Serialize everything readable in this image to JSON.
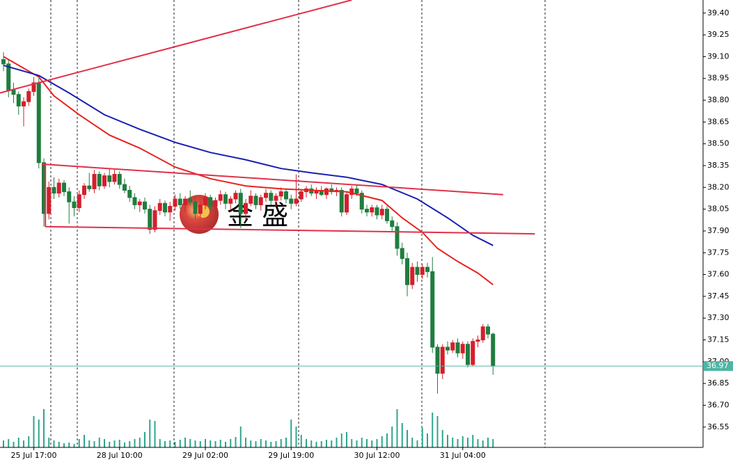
{
  "chart_data": {
    "type": "candlestick",
    "categories": [
      null,
      null,
      null,
      null,
      null,
      null,
      "25 Jul 17:00",
      null,
      null,
      null,
      null,
      null,
      null,
      null,
      null,
      null,
      null,
      null,
      null,
      null,
      null,
      null,
      null,
      "28 Jul 10:00",
      null,
      null,
      null,
      null,
      null,
      null,
      null,
      null,
      null,
      null,
      null,
      null,
      null,
      null,
      null,
      null,
      "29 Jul 02:00",
      null,
      null,
      null,
      null,
      null,
      null,
      null,
      null,
      null,
      null,
      null,
      null,
      null,
      null,
      null,
      null,
      "29 Jul 19:00",
      null,
      null,
      null,
      null,
      null,
      null,
      null,
      null,
      null,
      null,
      null,
      null,
      null,
      null,
      null,
      null,
      "30 Jul 12:00",
      null,
      null,
      null,
      null,
      null,
      null,
      null,
      null,
      null,
      null,
      null,
      null,
      null,
      null,
      null,
      null,
      "31 Jul 04:00",
      null,
      null,
      null,
      null,
      null,
      null
    ],
    "open": [
      39.08,
      39.05,
      38.87,
      38.84,
      38.76,
      38.79,
      38.86,
      38.92,
      38.37,
      38.02,
      38.2,
      38.16,
      38.23,
      38.17,
      38.1,
      38.06,
      38.15,
      38.21,
      38.19,
      38.29,
      38.21,
      38.28,
      38.24,
      38.29,
      38.22,
      38.18,
      38.13,
      38.08,
      38.1,
      38.05,
      37.91,
      38.04,
      38.09,
      38.03,
      38.07,
      38.12,
      38.08,
      38.12,
      38.1,
      38.02,
      38.08,
      38.13,
      38.07,
      38.11,
      38.15,
      38.09,
      38.12,
      38.16,
      38.02,
      38.09,
      38.14,
      38.08,
      38.13,
      38.16,
      38.11,
      38.14,
      38.17,
      38.12,
      38.09,
      38.12,
      38.17,
      38.19,
      38.16,
      38.18,
      38.15,
      38.19,
      38.17,
      38.18,
      38.03,
      38.15,
      38.19,
      38.16,
      38.05,
      38.03,
      38.06,
      38.01,
      38.05,
      37.97,
      37.93,
      37.78,
      37.71,
      37.53,
      37.65,
      37.6,
      37.65,
      37.62,
      37.1,
      36.92,
      37.1,
      37.08,
      37.13,
      37.06,
      37.12,
      36.98,
      37.14,
      37.15,
      37.24,
      37.19
    ],
    "high": [
      39.13,
      39.08,
      38.92,
      38.86,
      38.82,
      38.88,
      38.96,
      38.95,
      38.4,
      38.24,
      38.27,
      38.26,
      38.25,
      38.2,
      38.14,
      38.18,
      38.23,
      38.3,
      38.32,
      38.31,
      38.3,
      38.33,
      38.32,
      38.31,
      38.26,
      38.21,
      38.16,
      38.12,
      38.13,
      38.08,
      38.07,
      38.12,
      38.11,
      38.1,
      38.15,
      38.16,
      38.14,
      38.18,
      38.14,
      38.1,
      38.16,
      38.15,
      38.13,
      38.18,
      38.17,
      38.14,
      38.18,
      38.19,
      38.12,
      38.18,
      38.16,
      38.15,
      38.19,
      38.18,
      38.16,
      38.2,
      38.19,
      38.15,
      38.29,
      38.19,
      38.21,
      38.22,
      38.2,
      38.21,
      38.2,
      38.22,
      38.2,
      38.2,
      38.17,
      38.21,
      38.22,
      38.18,
      38.08,
      38.08,
      38.08,
      38.08,
      38.07,
      38.0,
      37.96,
      37.82,
      37.75,
      37.68,
      37.69,
      37.67,
      37.68,
      37.72,
      37.12,
      37.12,
      37.14,
      37.15,
      37.16,
      37.14,
      37.14,
      37.16,
      37.18,
      37.26,
      37.26,
      37.2
    ],
    "low": [
      39.0,
      38.82,
      38.78,
      38.7,
      38.62,
      38.76,
      38.83,
      38.33,
      37.93,
      37.98,
      38.12,
      38.13,
      38.14,
      37.95,
      38.0,
      38.03,
      38.12,
      38.17,
      38.16,
      38.18,
      38.19,
      38.2,
      38.22,
      38.19,
      38.16,
      38.1,
      38.05,
      38.03,
      38.02,
      37.88,
      37.89,
      38.01,
      38.0,
      37.97,
      38.04,
      38.05,
      38.03,
      38.08,
      37.98,
      37.99,
      38.05,
      38.04,
      38.02,
      38.08,
      38.05,
      38.04,
      38.09,
      37.92,
      37.98,
      38.07,
      38.05,
      38.04,
      38.1,
      38.08,
      38.07,
      38.11,
      38.09,
      38.05,
      38.07,
      38.1,
      38.13,
      38.14,
      38.12,
      38.14,
      38.12,
      38.15,
      38.14,
      38.0,
      38.01,
      38.12,
      38.14,
      38.02,
      38.0,
      38.0,
      37.98,
      37.98,
      37.95,
      37.9,
      37.73,
      37.67,
      37.45,
      37.5,
      37.55,
      37.57,
      37.58,
      37.06,
      36.78,
      36.88,
      37.05,
      37.06,
      37.03,
      37.02,
      36.96,
      36.97,
      37.1,
      37.13,
      37.16,
      36.91
    ],
    "close": [
      39.05,
      38.87,
      38.84,
      38.76,
      38.79,
      38.86,
      38.92,
      38.37,
      38.02,
      38.2,
      38.16,
      38.23,
      38.17,
      38.1,
      38.06,
      38.15,
      38.21,
      38.19,
      38.29,
      38.21,
      38.28,
      38.24,
      38.29,
      38.22,
      38.18,
      38.13,
      38.08,
      38.1,
      38.05,
      37.91,
      38.04,
      38.09,
      38.03,
      38.07,
      38.12,
      38.08,
      38.12,
      38.1,
      38.02,
      38.08,
      38.13,
      38.07,
      38.11,
      38.15,
      38.09,
      38.12,
      38.16,
      38.02,
      38.09,
      38.14,
      38.08,
      38.13,
      38.16,
      38.11,
      38.14,
      38.17,
      38.12,
      38.09,
      38.12,
      38.17,
      38.19,
      38.16,
      38.18,
      38.15,
      38.19,
      38.17,
      38.18,
      38.03,
      38.15,
      38.19,
      38.16,
      38.05,
      38.03,
      38.06,
      38.01,
      38.05,
      37.97,
      37.93,
      37.78,
      37.71,
      37.53,
      37.65,
      37.6,
      37.65,
      37.62,
      37.1,
      36.92,
      37.1,
      37.08,
      37.13,
      37.06,
      37.12,
      36.98,
      37.14,
      37.15,
      37.24,
      37.19,
      36.97
    ],
    "volume": [
      10,
      12,
      8,
      14,
      10,
      16,
      45,
      40,
      55,
      14,
      10,
      8,
      6,
      7,
      5,
      12,
      18,
      10,
      9,
      14,
      12,
      8,
      10,
      11,
      7,
      9,
      12,
      14,
      22,
      40,
      38,
      12,
      9,
      10,
      8,
      11,
      14,
      12,
      10,
      9,
      12,
      10,
      9,
      11,
      8,
      12,
      15,
      30,
      14,
      10,
      9,
      12,
      10,
      8,
      9,
      12,
      14,
      40,
      30,
      18,
      12,
      10,
      8,
      9,
      11,
      10,
      14,
      20,
      22,
      12,
      10,
      14,
      12,
      10,
      12,
      16,
      20,
      30,
      55,
      35,
      25,
      14,
      10,
      28,
      20,
      50,
      45,
      25,
      18,
      14,
      12,
      16,
      14,
      18,
      12,
      10,
      14,
      12
    ],
    "ylim": [
      36.41,
      39.49
    ],
    "yticks": [
      {
        "value": 39.4,
        "label": "39.40"
      },
      39.25,
      {
        "value": 39.1,
        "label": "39.10"
      },
      38.95,
      {
        "value": 38.8,
        "label": "38.80"
      },
      38.65,
      {
        "value": 38.5,
        "label": "38.50"
      },
      38.35,
      {
        "value": 38.2,
        "label": "38.20"
      },
      38.05,
      {
        "value": 37.9,
        "label": "37.90"
      },
      37.75,
      {
        "value": 37.6,
        "label": "37.60"
      },
      37.45,
      {
        "value": 37.3,
        "label": "37.30"
      },
      37.15,
      {
        "value": 37.0,
        "label": "37.00"
      },
      36.85,
      {
        "value": 36.7,
        "label": "36.70"
      },
      36.55
    ],
    "up_color": "#d41f2c",
    "down_color": "#1f7d3f",
    "volume_color": "#2ca58d",
    "moving_averages": [
      {
        "color": "#e8231f",
        "x": [
          0,
          3,
          7,
          10,
          15,
          21,
          27,
          34,
          41,
          48,
          55,
          61,
          68,
          75,
          79,
          83,
          86,
          90,
          94,
          97
        ],
        "values": [
          39.1,
          39.04,
          38.96,
          38.83,
          38.7,
          38.56,
          38.47,
          38.34,
          38.26,
          38.21,
          38.19,
          38.18,
          38.17,
          38.11,
          37.99,
          37.89,
          37.78,
          37.69,
          37.61,
          37.53
        ]
      },
      {
        "color": "#1a1fb0",
        "x": [
          0,
          7,
          13,
          20,
          27,
          34,
          41,
          48,
          55,
          61,
          68,
          75,
          82,
          88,
          93,
          97
        ],
        "values": [
          39.04,
          38.97,
          38.85,
          38.7,
          38.6,
          38.51,
          38.44,
          38.39,
          38.33,
          38.3,
          38.27,
          38.22,
          38.12,
          37.99,
          37.87,
          37.8
        ]
      }
    ],
    "trendlines": [
      {
        "color": "#e0304a",
        "x": [
          -0.7,
          69
        ],
        "values": [
          38.85,
          39.49
        ]
      },
      {
        "color": "#e0304a",
        "x": [
          7.6,
          99
        ],
        "values": [
          38.36,
          38.15
        ]
      },
      {
        "color": "#e0304a",
        "x": [
          8.3,
          105.3
        ],
        "values": [
          37.93,
          37.88
        ]
      },
      {
        "color": "#e0304a",
        "x": [
          8.3,
          8.3
        ],
        "values": [
          38.36,
          37.93
        ]
      }
    ],
    "last_price": 36.97,
    "last_price_color": "#4fb5a5",
    "watermark": "金 盛"
  }
}
